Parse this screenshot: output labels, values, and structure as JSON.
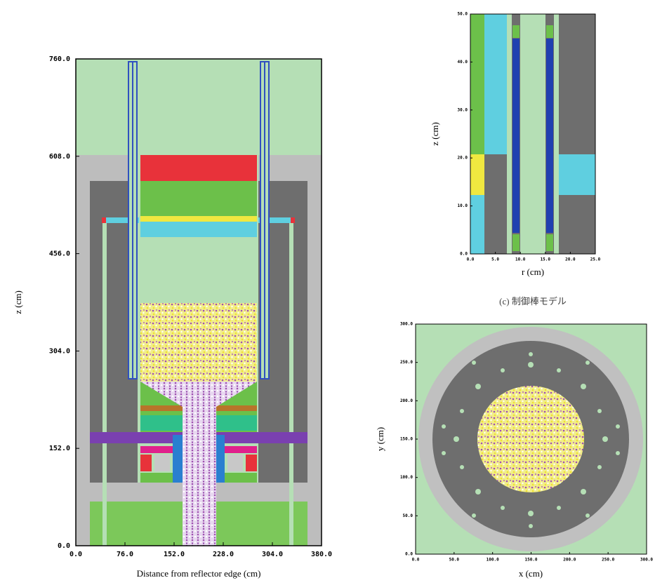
{
  "left_plot": {
    "yticks": [
      "0.0",
      "152.0",
      "304.0",
      "456.0",
      "608.0",
      "760.0"
    ],
    "xticks": [
      "0.0",
      "76.0",
      "152.0",
      "228.0",
      "304.0",
      "380.0"
    ],
    "ylabel": "z (cm)",
    "xlabel": "Distance from reflector edge (cm)"
  },
  "rod_plot": {
    "yticks": [
      "0.0",
      "10.0",
      "20.0",
      "30.0",
      "40.0",
      "50.0"
    ],
    "xticks": [
      "0.0",
      "5.0",
      "10.0",
      "15.0",
      "20.0",
      "25.0"
    ],
    "ylabel": "z (cm)",
    "xlabel": "r (cm)",
    "caption": "(c) 制御棒モデル"
  },
  "plan_plot": {
    "yticks": [
      "0.0",
      "50.0",
      "100.0",
      "150.0",
      "200.0",
      "250.0",
      "300.0"
    ],
    "xticks": [
      "0.0",
      "50.0",
      "100.0",
      "150.0",
      "200.0",
      "250.0",
      "300.0"
    ],
    "ylabel": "y (cm)",
    "xlabel": "x (cm)"
  }
}
